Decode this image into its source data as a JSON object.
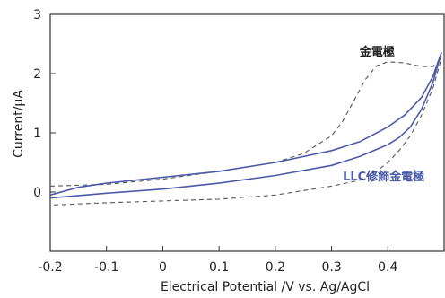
{
  "chart_data": {
    "type": "line",
    "xlabel": "Electrical Potential /V vs. Ag/AgCl",
    "ylabel": "Current/μA",
    "xlim": [
      -0.2,
      0.5
    ],
    "ylim": [
      -1,
      3
    ],
    "xticks": [
      "-0.2",
      "-0.1",
      "0",
      "0.1",
      "0.2",
      "0.3",
      "0.4"
    ],
    "xtick_values": [
      -0.2,
      -0.1,
      0,
      0.1,
      0.2,
      0.3,
      0.4
    ],
    "yticks": [
      "0",
      "1",
      "2",
      "3"
    ],
    "ytick_values": [
      0,
      1,
      2,
      3
    ],
    "grid": false,
    "series": [
      {
        "name": "金電極",
        "style": "dashed",
        "color": "#555555",
        "x": [
          -0.2,
          -0.1,
          0.0,
          0.1,
          0.2,
          0.25,
          0.3,
          0.32,
          0.34,
          0.36,
          0.38,
          0.4,
          0.43,
          0.46,
          0.48,
          0.495,
          0.48,
          0.46,
          0.44,
          0.42,
          0.4,
          0.38,
          0.35,
          0.3,
          0.2,
          0.1,
          0.0,
          -0.1,
          -0.2
        ],
        "y": [
          0.1,
          0.13,
          0.22,
          0.35,
          0.5,
          0.65,
          0.95,
          1.2,
          1.55,
          1.9,
          2.13,
          2.2,
          2.18,
          2.12,
          2.12,
          2.25,
          1.75,
          1.3,
          0.95,
          0.7,
          0.5,
          0.35,
          0.2,
          0.1,
          -0.05,
          -0.12,
          -0.15,
          -0.18,
          -0.22
        ]
      },
      {
        "name": "LLC修飾金電極",
        "style": "solid",
        "color": "#4a5aa8",
        "x": [
          -0.2,
          -0.15,
          -0.1,
          0.0,
          0.1,
          0.2,
          0.3,
          0.35,
          0.4,
          0.43,
          0.46,
          0.48,
          0.495,
          0.48,
          0.46,
          0.44,
          0.42,
          0.4,
          0.38,
          0.35,
          0.3,
          0.2,
          0.1,
          0.0,
          -0.1,
          -0.2
        ],
        "y": [
          -0.05,
          0.08,
          0.15,
          0.25,
          0.35,
          0.5,
          0.7,
          0.85,
          1.1,
          1.3,
          1.6,
          1.95,
          2.35,
          1.85,
          1.4,
          1.1,
          0.92,
          0.8,
          0.72,
          0.6,
          0.45,
          0.28,
          0.15,
          0.05,
          -0.02,
          -0.1
        ]
      }
    ],
    "annotations": [
      {
        "text": "金電極",
        "color": "#222222",
        "anchor": [
          0.35,
          2.3
        ]
      },
      {
        "text": "LLC修飾金電極",
        "color": "#4a5aa8",
        "anchor": [
          0.32,
          0.2
        ]
      }
    ]
  }
}
